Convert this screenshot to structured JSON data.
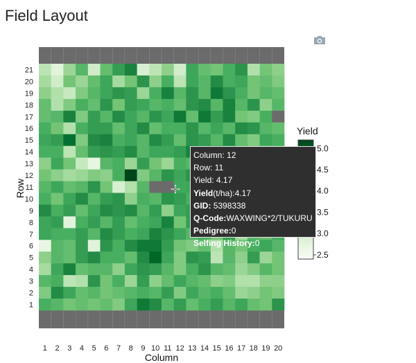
{
  "page": {
    "title": "Field Layout"
  },
  "toolbar": {
    "camera_icon": "camera-icon"
  },
  "chart_data": {
    "type": "heatmap",
    "title": "Field Layout",
    "xlabel": "Column",
    "ylabel": "Row",
    "x_categories": [
      1,
      2,
      3,
      4,
      5,
      6,
      7,
      8,
      9,
      10,
      11,
      12,
      13,
      14,
      15,
      16,
      17,
      18,
      19,
      20
    ],
    "y_categories": [
      1,
      2,
      3,
      4,
      5,
      6,
      7,
      8,
      9,
      10,
      11,
      12,
      13,
      14,
      15,
      16,
      17,
      18,
      19,
      20,
      21
    ],
    "colorbar": {
      "title": "Yield",
      "ticks": [
        2.5,
        3,
        3.5,
        4,
        4.5,
        5
      ],
      "range": [
        2.4,
        5.2
      ]
    },
    "colorscale": [
      "#f7fcf5",
      "#e5f5e0",
      "#c7e9c0",
      "#a1d99b",
      "#74c476",
      "#41ab5d",
      "#238b45",
      "#006d2c",
      "#00441b"
    ],
    "missing_color": "#6b6b6b",
    "z": [
      [
        3.2,
        2.8,
        3.5,
        4.0,
        3.0,
        3.9,
        4.3,
        4.6,
        2.9,
        3.2,
        3.6,
        3.0,
        4.2,
        3.9,
        3.8,
        4.1,
        4.4,
        3.3,
        3.8,
        3.6
      ],
      [
        3.4,
        3.0,
        3.8,
        3.5,
        3.9,
        4.2,
        3.4,
        3.8,
        4.4,
        3.6,
        4.1,
        3.2,
        4.2,
        4.0,
        4.5,
        4.1,
        4.2,
        3.8,
        3.9,
        3.7
      ],
      [
        3.6,
        3.3,
        3.1,
        3.7,
        4.0,
        4.2,
        4.4,
        4.3,
        3.5,
        4.1,
        4.6,
        4.0,
        4.4,
        4.0,
        4.7,
        4.4,
        4.1,
        3.8,
        4.0,
        3.9
      ],
      [
        3.9,
        3.3,
        3.7,
        4.1,
        3.9,
        4.4,
        3.8,
        4.3,
        4.2,
        4.0,
        4.1,
        3.9,
        4.4,
        4.5,
        4.0,
        4.6,
        4.0,
        4.4,
        3.6,
        4.0
      ],
      [
        3.9,
        4.0,
        4.6,
        3.7,
        4.3,
        4.0,
        4.5,
        4.2,
        4.0,
        4.4,
        4.2,
        4.7,
        3.9,
        4.7,
        4.3,
        4.6,
        3.8,
        3.7,
        4.1,
        null
      ],
      [
        4.1,
        3.8,
        3.3,
        4.1,
        4.3,
        4.3,
        3.9,
        4.2,
        4.5,
        3.9,
        4.1,
        4.1,
        4.4,
        4.0,
        4.2,
        4.0,
        4.5,
        4.4,
        4.0,
        3.9
      ],
      [
        4.2,
        4.3,
        4.8,
        3.7,
        4.5,
        4.6,
        4.1,
        4.2,
        4.0,
        4.5,
        4.3,
        3.9,
        4.4,
        4.3,
        4.0,
        4.5,
        3.9,
        3.7,
        4.2,
        4.1
      ],
      [
        4.1,
        4.1,
        3.2,
        3.9,
        4.3,
        4.4,
        4.3,
        4.5,
        4.0,
        4.2,
        4.2,
        4.3,
        4.6,
        4.4,
        4.6,
        4.1,
        4.0,
        3.9,
        3.7,
        4.0
      ],
      [
        3.6,
        4.2,
        3.8,
        3.1,
        2.7,
        4.0,
        4.1,
        3.5,
        4.3,
        3.8,
        3.5,
        4.1,
        4.0,
        4.2,
        4.4,
        3.9,
        4.0,
        3.8,
        3.5,
        3.6
      ],
      [
        3.8,
        3.6,
        3.4,
        3.5,
        3.7,
        3.6,
        4.1,
        5.2,
        3.7,
        4.0,
        4.4,
        4.2,
        4.4,
        3.9,
        3.8,
        3.9,
        3.7,
        4.1,
        3.6,
        3.6
      ],
      [
        4.0,
        4.2,
        3.9,
        4.0,
        4.4,
        3.8,
        2.9,
        3.3,
        4.0,
        null,
        null,
        4.17,
        4.2,
        4.0,
        3.9,
        4.2,
        4.1,
        3.8,
        3.7,
        3.9
      ],
      [
        4.1,
        3.8,
        4.2,
        4.5,
        4.0,
        4.3,
        4.4,
        3.6,
        4.1,
        4.0,
        4.4,
        4.3,
        4.1,
        4.2,
        4.3,
        4.0,
        4.1,
        3.9,
        3.8,
        3.9
      ],
      [
        4.5,
        4.1,
        4.3,
        3.9,
        4.2,
        4.5,
        4.4,
        4.5,
        4.0,
        4.3,
        3.6,
        4.2,
        4.3,
        4.5,
        4.0,
        4.4,
        4.3,
        4.1,
        4.2,
        4.0
      ],
      [
        4.2,
        4.3,
        2.8,
        4.1,
        4.3,
        4.0,
        4.3,
        3.9,
        4.1,
        4.2,
        4.6,
        3.8,
        4.3,
        4.2,
        4.2,
        3.9,
        4.0,
        3.7,
        4.1,
        3.8
      ],
      [
        4.2,
        4.1,
        4.1,
        4.3,
        4.0,
        4.5,
        4.3,
        4.1,
        4.2,
        4.6,
        4.4,
        4.2,
        4.0,
        4.1,
        3.8,
        4.3,
        3.4,
        4.0,
        3.9,
        4.1
      ],
      [
        2.7,
        4.0,
        3.9,
        4.3,
        2.8,
        4.4,
        4.1,
        4.5,
        4.7,
        4.7,
        4.3,
        3.8,
        3.7,
        3.9,
        3.3,
        4.0,
        3.8,
        4.1,
        4.2,
        4.0
      ],
      [
        3.6,
        4.0,
        3.9,
        4.3,
        4.5,
        4.1,
        4.1,
        3.9,
        4.5,
        4.9,
        4.2,
        3.7,
        4.4,
        4.3,
        3.2,
        4.0,
        3.6,
        4.3,
        3.5,
        3.8
      ],
      [
        3.4,
        4.2,
        4.6,
        3.9,
        4.0,
        4.0,
        3.6,
        4.2,
        4.4,
        4.3,
        4.0,
        3.7,
        4.1,
        4.4,
        4.0,
        3.9,
        3.5,
        3.7,
        4.0,
        3.8
      ],
      [
        4.0,
        4.1,
        3.2,
        3.3,
        4.4,
        3.8,
        4.1,
        3.5,
        4.3,
        3.6,
        3.9,
        4.2,
        4.0,
        3.9,
        3.6,
        3.7,
        3.3,
        3.3,
        3.6,
        3.6
      ],
      [
        3.7,
        4.5,
        4.2,
        3.9,
        4.0,
        3.8,
        3.9,
        4.0,
        4.1,
        4.0,
        4.3,
        3.7,
        4.2,
        4.0,
        4.1,
        3.9,
        3.5,
        3.6,
        3.8,
        3.7
      ],
      [
        4.1,
        4.0,
        3.8,
        3.9,
        3.8,
        3.9,
        3.7,
        4.2,
        4.7,
        4.5,
        4.0,
        4.3,
        3.9,
        4.1,
        4.3,
        4.0,
        4.2,
        3.9,
        3.8,
        4.4
      ]
    ],
    "tooltip": {
      "column_label": "Column:",
      "column_value": "12",
      "row_label": "Row:",
      "row_value": "11",
      "yield_label": "Yield:",
      "yield_value": "4.17",
      "yield_tha_label": "Yield",
      "yield_tha_unit": "(t/ha):",
      "yield_tha_value": "4.17",
      "gid_label": "GID:",
      "gid_value": "5398338",
      "qcode_label": "Q-Code:",
      "qcode_value": "WAXWING*2/TUKURU",
      "pedigree_label": "Pedigree:",
      "pedigree_value": "0",
      "selfing_label": "Selfing History:",
      "selfing_value": "0"
    }
  }
}
